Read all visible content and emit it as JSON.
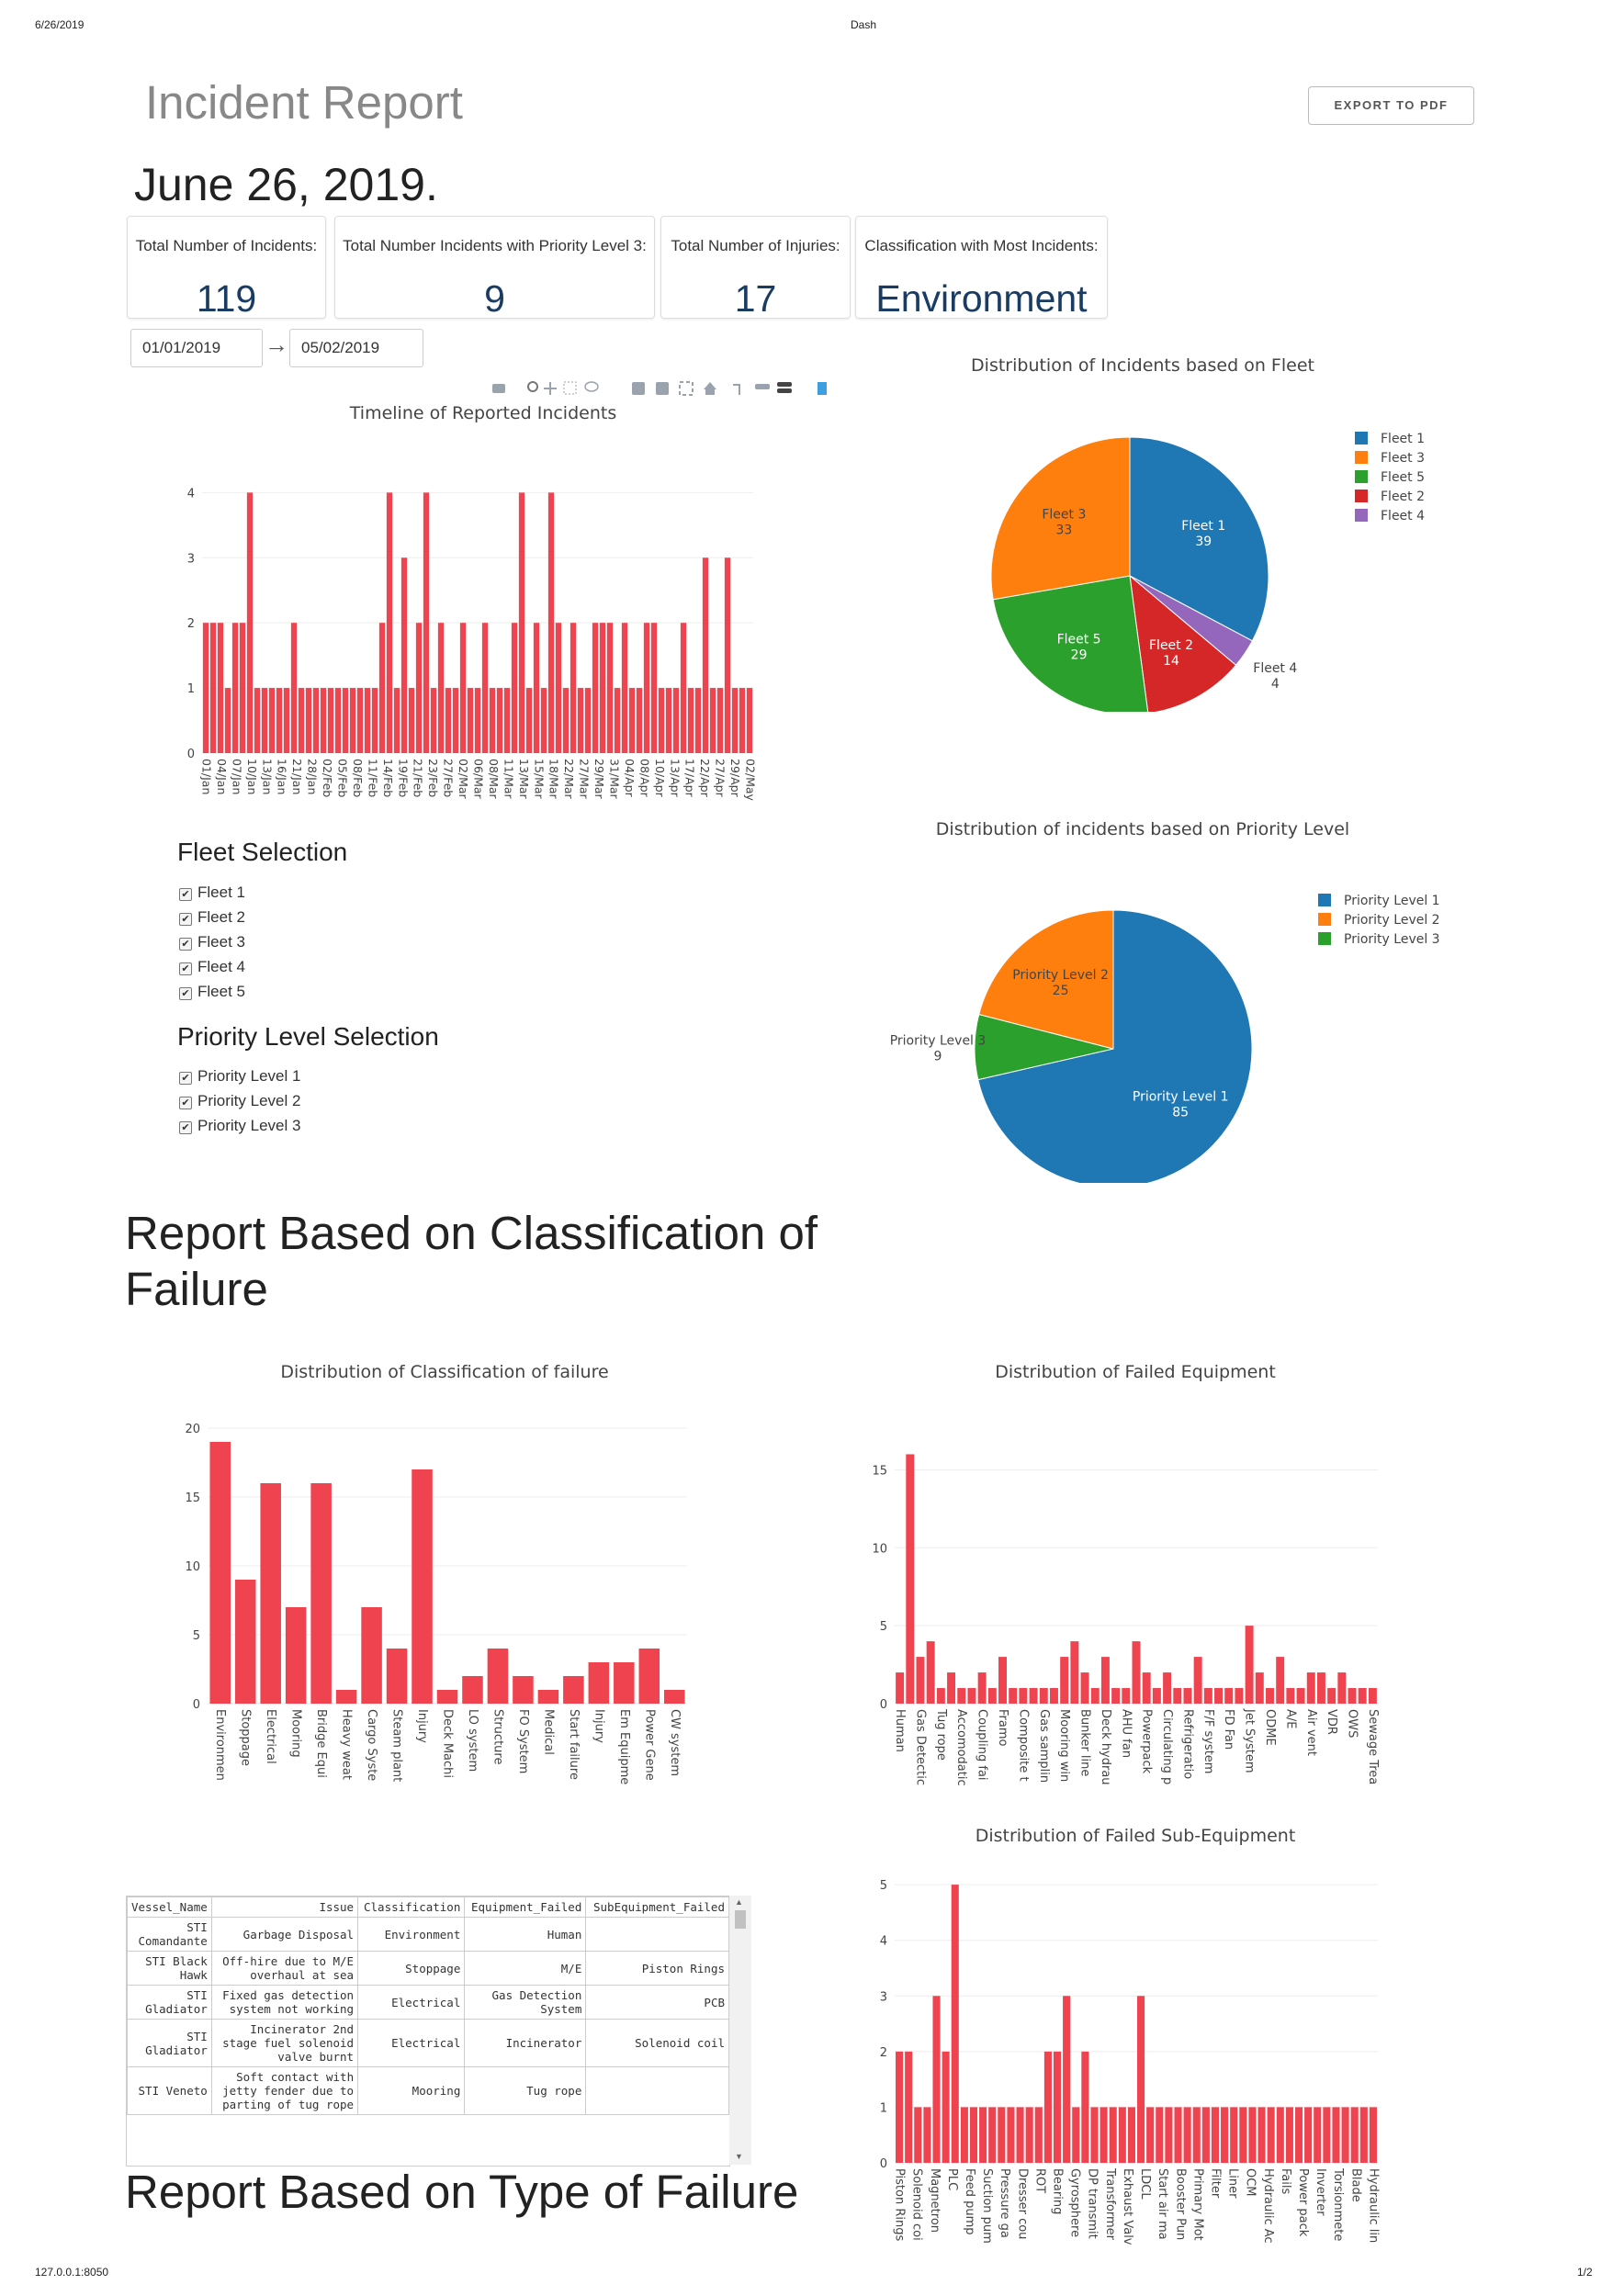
{
  "print_header": {
    "date": "6/26/2019",
    "title": "Dash"
  },
  "print_footer": {
    "url": "127.0.0.1:8050",
    "page": "1/2"
  },
  "header": {
    "title": "Incident Report",
    "export_label": "EXPORT TO PDF",
    "report_date": "June 26, 2019."
  },
  "cards": [
    {
      "label": "Total Number of Incidents:",
      "value": "119"
    },
    {
      "label": "Total Number Incidents with Priority Level 3:",
      "value": "9"
    },
    {
      "label": "Total Number of Injuries:",
      "value": "17"
    },
    {
      "label": "Classification with Most Incidents:",
      "value": "Environment"
    }
  ],
  "date_range": {
    "start": "01/01/2019",
    "arrow": "→",
    "end": "05/02/2019"
  },
  "fleet_selection": {
    "title": "Fleet Selection",
    "options": [
      "Fleet 1",
      "Fleet 2",
      "Fleet 3",
      "Fleet 4",
      "Fleet 5"
    ]
  },
  "priority_selection": {
    "title": "Priority Level Selection",
    "options": [
      "Priority Level 1",
      "Priority Level 2",
      "Priority Level 3"
    ]
  },
  "section_classification": {
    "title_line1": "Report Based on Classification of",
    "title_line2": "Failure"
  },
  "section_type": {
    "title": "Report Based on Type of Failure"
  },
  "colors": {
    "bar": "#ef4350",
    "fleet1": "#1f77b4",
    "fleet3": "#ff7f0e",
    "fleet5": "#2ca02c",
    "fleet2": "#d62728",
    "fleet4": "#9467bd"
  },
  "modebar_icons": [
    "camera-icon",
    "zoom-icon",
    "pan-icon",
    "box-select-icon",
    "lasso-icon",
    "zoom-in-icon",
    "zoom-out-icon",
    "autoscale-icon",
    "reset-axes-icon",
    "spike-lines-icon",
    "hover-closest-icon",
    "hover-compare-icon",
    "plotly-logo-icon"
  ],
  "table": {
    "columns": [
      "Vessel_Name",
      "Issue",
      "Classification",
      "Equipment_Failed",
      "SubEquipment_Failed"
    ],
    "rows": [
      [
        "STI Comandante",
        "Garbage Disposal",
        "Environment",
        "Human",
        ""
      ],
      [
        "STI Black Hawk",
        "Off-hire due to M/E overhaul at sea",
        "Stoppage",
        "M/E",
        "Piston Rings"
      ],
      [
        "STI Gladiator",
        "Fixed gas detection system not working",
        "Electrical",
        "Gas Detection System",
        "PCB"
      ],
      [
        "STI Gladiator",
        "Incinerator 2nd stage fuel solenoid valve burnt",
        "Electrical",
        "Incinerator",
        "Solenoid coil"
      ],
      [
        "STI Veneto",
        "Soft contact with jetty fender due to parting of tug rope",
        "Mooring",
        "Tug rope",
        ""
      ]
    ]
  },
  "chart_data": [
    {
      "type": "bar",
      "title": "Timeline of Reported Incidents",
      "ylim": [
        0,
        4.4
      ],
      "yticks": [
        0,
        1,
        2,
        3,
        4
      ],
      "tick_labels": [
        "01/Jan",
        "04/Jan",
        "07/Jan",
        "10/Jan",
        "13/Jan",
        "16/Jan",
        "21/Jan",
        "28/Jan",
        "02/Feb",
        "05/Feb",
        "08/Feb",
        "11/Feb",
        "14/Feb",
        "19/Feb",
        "21/Feb",
        "23/Feb",
        "27/Feb",
        "02/Mar",
        "06/Mar",
        "08/Mar",
        "11/Mar",
        "13/Mar",
        "15/Mar",
        "18/Mar",
        "22/Mar",
        "27/Mar",
        "29/Mar",
        "31/Mar",
        "04/Apr",
        "08/Apr",
        "10/Apr",
        "13/Apr",
        "17/Apr",
        "22/Apr",
        "27/Apr",
        "29/Apr",
        "02/May"
      ],
      "values": [
        2,
        2,
        2,
        1,
        2,
        2,
        4,
        1,
        1,
        1,
        1,
        1,
        2,
        1,
        1,
        1,
        1,
        1,
        1,
        1,
        1,
        1,
        1,
        1,
        2,
        4,
        1,
        3,
        1,
        2,
        4,
        1,
        2,
        1,
        1,
        2,
        1,
        1,
        2,
        1,
        1,
        1,
        2,
        4,
        1,
        2,
        1,
        4,
        2,
        1,
        2,
        1,
        1,
        2,
        2,
        2,
        1,
        2,
        1,
        1,
        2,
        2,
        1,
        1,
        1,
        2,
        1,
        1,
        3,
        1,
        1,
        3,
        1,
        1,
        1
      ]
    },
    {
      "type": "pie",
      "title": "Distribution of Incidents based on Fleet",
      "labels": [
        "Fleet 1",
        "Fleet 4",
        "Fleet 2",
        "Fleet 5",
        "Fleet 3"
      ],
      "values": [
        39,
        4,
        14,
        29,
        33
      ],
      "colors": [
        "#1f77b4",
        "#9467bd",
        "#d62728",
        "#2ca02c",
        "#ff7f0e"
      ],
      "legend": [
        "Fleet 1",
        "Fleet 3",
        "Fleet 5",
        "Fleet 2",
        "Fleet 4"
      ],
      "legend_colors": [
        "#1f77b4",
        "#ff7f0e",
        "#2ca02c",
        "#d62728",
        "#9467bd"
      ],
      "legend_placement": "right"
    },
    {
      "type": "pie",
      "title": "Distribution of incidents based on Priority Level",
      "labels": [
        "Priority Level 1",
        "Priority Level 3",
        "Priority Level 2"
      ],
      "values": [
        85,
        9,
        25
      ],
      "colors": [
        "#1f77b4",
        "#2ca02c",
        "#ff7f0e"
      ],
      "legend": [
        "Priority Level 1",
        "Priority Level 2",
        "Priority Level 3"
      ],
      "legend_colors": [
        "#1f77b4",
        "#ff7f0e",
        "#2ca02c"
      ],
      "legend_placement": "right"
    },
    {
      "type": "bar",
      "title": "Distribution of Classification of failure",
      "ylim": [
        0,
        20
      ],
      "yticks": [
        0,
        5,
        10,
        15,
        20
      ],
      "categories": [
        "Environmen",
        "Stoppage",
        "Electrical",
        "Mooring",
        "Bridge Equi",
        "Heavy weat",
        "Cargo Syste",
        "Steam plant",
        "Injury",
        "Deck Machi",
        "LO system",
        "Structure",
        "FO System",
        "Medical",
        "Start failure",
        "Injury",
        "Em Equipme",
        "Power Gene",
        "CW system"
      ],
      "values": [
        19,
        9,
        16,
        7,
        16,
        1,
        7,
        4,
        17,
        1,
        2,
        4,
        2,
        1,
        2,
        3,
        3,
        4,
        1
      ]
    },
    {
      "type": "bar",
      "title": "Distribution of Failed Equipment",
      "ylim": [
        0,
        16.5
      ],
      "yticks": [
        0,
        5,
        10,
        15
      ],
      "tick_labels": [
        "Human",
        "Gas Detectic",
        "Tug rope",
        "Accomodatic",
        "Coupling fai",
        "Framo",
        "Composite t",
        "Gas samplin",
        "Mooring win",
        "Bunker line",
        "Deck hydrau",
        "AHU fan",
        "Powerpack",
        "Circulating p",
        "Refrigeratio",
        "F/F system",
        "FD Fan",
        "Jet System",
        "ODME",
        "A/E",
        "Air vent",
        "VDR",
        "OWS",
        "Sewage Trea"
      ],
      "values": [
        2,
        16,
        3,
        4,
        1,
        2,
        1,
        1,
        2,
        1,
        3,
        1,
        1,
        1,
        1,
        1,
        3,
        4,
        2,
        1,
        3,
        1,
        1,
        4,
        2,
        1,
        2,
        1,
        1,
        3,
        1,
        1,
        1,
        1,
        5,
        2,
        1,
        3,
        1,
        1,
        2,
        2,
        1,
        2,
        1,
        1,
        1
      ]
    },
    {
      "type": "bar",
      "title": "Distribution of Failed Sub-Equipment",
      "ylim": [
        0,
        5.2
      ],
      "yticks": [
        0,
        1,
        2,
        3,
        4,
        5
      ],
      "tick_labels": [
        "Piston Rings",
        "Solenoid coi",
        "Magnetron",
        "PLC",
        "Feed pump",
        "Suction pum",
        "Pressure ga",
        "Dresser cou",
        "ROT",
        "Bearing",
        "Gyrosphere",
        "DP transmit",
        "Transformer",
        "Exhaust Valv",
        "LDCL",
        "Start air ma",
        "Booster Pun",
        "Primary Mot",
        "Filter",
        "Liner",
        "OCM",
        "Hydraulic Ac",
        "Fails",
        "Power pack",
        "Inverter",
        "Torsionmete",
        "Blade",
        "Hydraulic lin"
      ],
      "values": [
        2,
        2,
        1,
        1,
        3,
        2,
        5,
        1,
        1,
        1,
        1,
        1,
        1,
        1,
        1,
        1,
        2,
        2,
        3,
        1,
        2,
        1,
        1,
        1,
        1,
        1,
        3,
        1,
        1,
        1,
        1,
        1,
        1,
        1,
        1,
        1,
        1,
        1,
        1,
        1,
        1,
        1,
        1,
        1,
        1,
        1,
        1,
        1,
        1,
        1,
        1,
        1
      ]
    }
  ]
}
